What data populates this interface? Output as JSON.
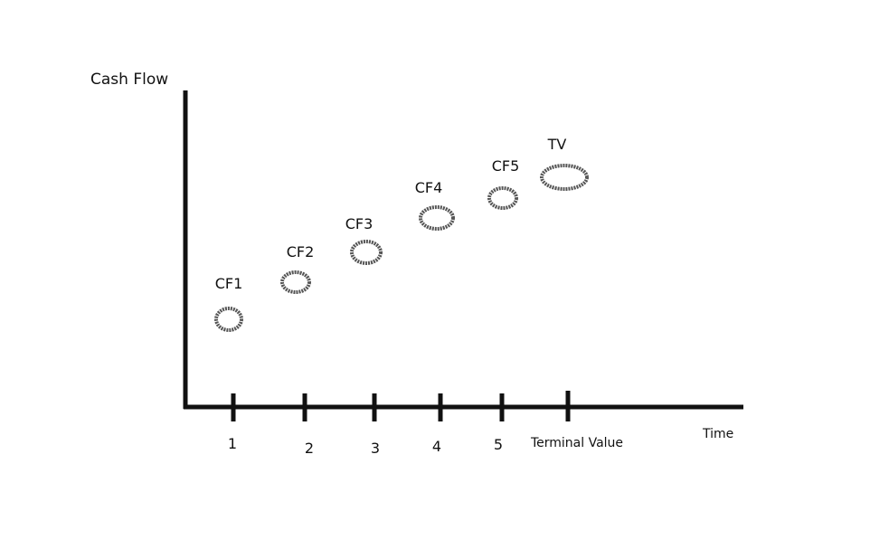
{
  "diagram": {
    "y_axis_label": "Cash Flow",
    "x_axis_label": "Time",
    "colors": {
      "ink": "#111111",
      "circle_stroke": "#555555"
    },
    "points": [
      {
        "label": "CF1",
        "tick": "1"
      },
      {
        "label": "CF2",
        "tick": "2"
      },
      {
        "label": "CF3",
        "tick": "3"
      },
      {
        "label": "CF4",
        "tick": "4"
      },
      {
        "label": "CF5",
        "tick": "5"
      },
      {
        "label": "TV",
        "tick": "Terminal Value"
      }
    ]
  }
}
